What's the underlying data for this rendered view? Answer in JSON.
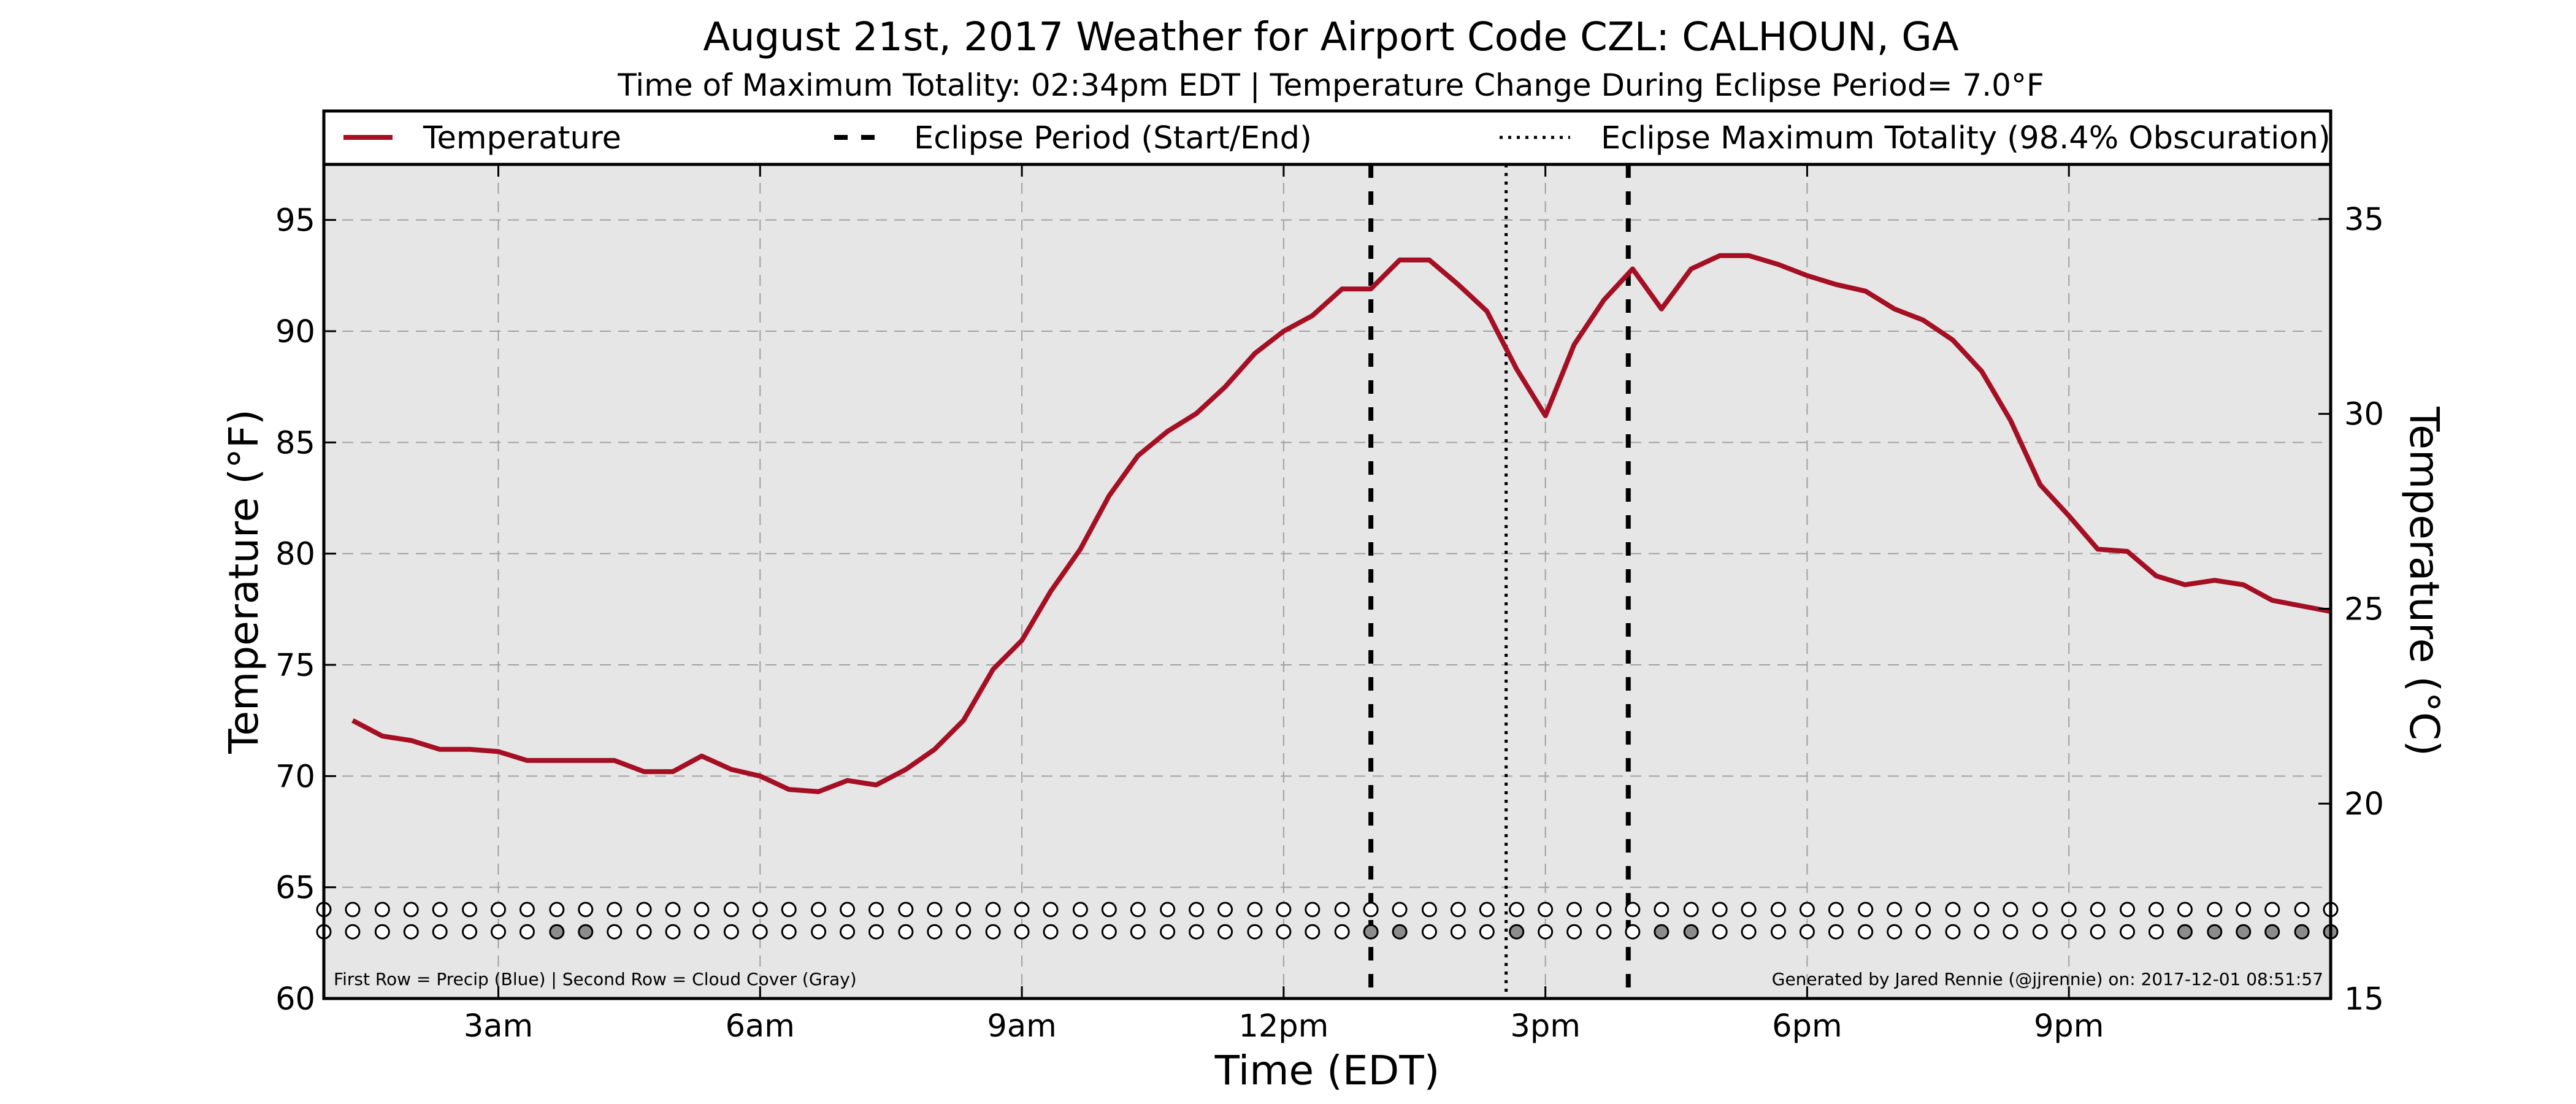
{
  "chart_data": {
    "type": "line",
    "title": "August 21st, 2017 Weather for Airport Code CZL: CALHOUN, GA",
    "subtitle": "Time of Maximum Totality: 02:34pm EDT | Temperature Change During Eclipse Period= 7.0°F",
    "xlabel": "Time (EDT)",
    "ylabel": "Temperature (°F)",
    "ylabel_right": "Temperature (°C)",
    "xlim": [
      1.0,
      24.0
    ],
    "ylim": [
      60,
      97.5
    ],
    "ylim_right": [
      15.0,
      36.4
    ],
    "x_ticks": [
      {
        "x": 3,
        "label": "3am"
      },
      {
        "x": 6,
        "label": "6am"
      },
      {
        "x": 9,
        "label": "9am"
      },
      {
        "x": 12,
        "label": "12pm"
      },
      {
        "x": 15,
        "label": "3pm"
      },
      {
        "x": 18,
        "label": "6pm"
      },
      {
        "x": 21,
        "label": "9pm"
      }
    ],
    "y_ticks": [
      60,
      65,
      70,
      75,
      80,
      85,
      90,
      95
    ],
    "y_ticks_right": [
      15,
      20,
      25,
      30,
      35
    ],
    "grid": true,
    "legend_position": "top",
    "legend": [
      {
        "label": "Temperature",
        "style": "solid"
      },
      {
        "label": "Eclipse Period (Start/End)",
        "style": "dashed"
      },
      {
        "label": "Eclipse Maximum Totality (98.4% Obscuration)",
        "style": "dotted"
      }
    ],
    "series": [
      {
        "name": "Temperature",
        "color": "#a50f23",
        "x": [
          1.33,
          1.67,
          2.0,
          2.33,
          2.67,
          3.0,
          3.33,
          3.67,
          4.0,
          4.33,
          4.67,
          5.0,
          5.33,
          5.67,
          6.0,
          6.33,
          6.67,
          7.0,
          7.33,
          7.67,
          8.0,
          8.33,
          8.67,
          9.0,
          9.33,
          9.67,
          10.0,
          10.33,
          10.67,
          11.0,
          11.33,
          11.67,
          12.0,
          12.33,
          12.67,
          13.0,
          13.33,
          13.67,
          14.0,
          14.33,
          14.67,
          15.0,
          15.33,
          15.67,
          16.0,
          16.33,
          16.67,
          17.0,
          17.33,
          17.67,
          18.0,
          18.33,
          18.67,
          19.0,
          19.33,
          19.67,
          20.0,
          20.33,
          20.67,
          21.0,
          21.33,
          21.67,
          22.0,
          22.33,
          22.67,
          23.0,
          23.33,
          24.0
        ],
        "y": [
          72.5,
          71.8,
          71.6,
          71.2,
          71.2,
          71.1,
          70.7,
          70.7,
          70.7,
          70.7,
          70.2,
          70.2,
          70.9,
          70.3,
          70.0,
          69.4,
          69.3,
          69.8,
          69.6,
          70.3,
          71.2,
          72.5,
          74.8,
          76.1,
          78.3,
          80.2,
          82.6,
          84.4,
          85.5,
          86.3,
          87.5,
          89.0,
          90.0,
          90.7,
          91.9,
          91.9,
          93.2,
          93.2,
          92.1,
          90.9,
          88.3,
          86.2,
          89.4,
          91.4,
          92.8,
          91.0,
          92.8,
          93.4,
          93.4,
          93.0,
          92.5,
          92.1,
          91.8,
          91.0,
          90.5,
          89.6,
          88.2,
          86.0,
          83.1,
          81.7,
          80.2,
          80.1,
          79.0,
          78.6,
          78.8,
          78.6,
          77.9,
          77.4
        ]
      }
    ],
    "eclipse_start_x": 13.0,
    "eclipse_end_x": 15.95,
    "eclipse_max_x": 14.55,
    "precip_row": {
      "y": 64.0,
      "x": [
        1.0,
        1.33,
        1.67,
        2.0,
        2.33,
        2.67,
        3.0,
        3.33,
        3.67,
        4.0,
        4.33,
        4.67,
        5.0,
        5.33,
        5.67,
        6.0,
        6.33,
        6.67,
        7.0,
        7.33,
        7.67,
        8.0,
        8.33,
        8.67,
        9.0,
        9.33,
        9.67,
        10.0,
        10.33,
        10.67,
        11.0,
        11.33,
        11.67,
        12.0,
        12.33,
        12.67,
        13.0,
        13.33,
        13.67,
        14.0,
        14.33,
        14.67,
        15.0,
        15.33,
        15.67,
        16.0,
        16.33,
        16.67,
        17.0,
        17.33,
        17.67,
        18.0,
        18.33,
        18.67,
        19.0,
        19.33,
        19.67,
        20.0,
        20.33,
        20.67,
        21.0,
        21.33,
        21.67,
        22.0,
        22.33,
        22.67,
        23.0,
        23.33,
        23.67,
        24.0
      ],
      "filled_x": [],
      "empty_color": "#ffffff",
      "filled_color": "#3d7fc4"
    },
    "cloud_row": {
      "y": 63.0,
      "x": [
        1.0,
        1.33,
        1.67,
        2.0,
        2.33,
        2.67,
        3.0,
        3.33,
        3.67,
        4.0,
        4.33,
        4.67,
        5.0,
        5.33,
        5.67,
        6.0,
        6.33,
        6.67,
        7.0,
        7.33,
        7.67,
        8.0,
        8.33,
        8.67,
        9.0,
        9.33,
        9.67,
        10.0,
        10.33,
        10.67,
        11.0,
        11.33,
        11.67,
        12.0,
        12.33,
        12.67,
        13.0,
        13.33,
        13.67,
        14.0,
        14.33,
        14.67,
        15.0,
        15.33,
        15.67,
        16.0,
        16.33,
        16.67,
        17.0,
        17.33,
        17.67,
        18.0,
        18.33,
        18.67,
        19.0,
        19.33,
        19.67,
        20.0,
        20.33,
        20.67,
        21.0,
        21.33,
        21.67,
        22.0,
        22.33,
        22.67,
        23.0,
        23.33,
        23.67,
        24.0
      ],
      "filled_x": [
        3.67,
        4.0,
        13.0,
        13.33,
        14.67,
        16.33,
        16.67,
        22.33,
        22.67,
        23.0,
        23.33,
        23.67,
        24.0
      ],
      "empty_color": "#ffffff",
      "filled_color": "#8c8c8c"
    },
    "footnote_left": "First Row = Precip (Blue) | Second Row = Cloud Cover (Gray)",
    "footnote_right": "Generated by Jared Rennie (@jjrennie) on: 2017-12-01 08:51:57"
  }
}
